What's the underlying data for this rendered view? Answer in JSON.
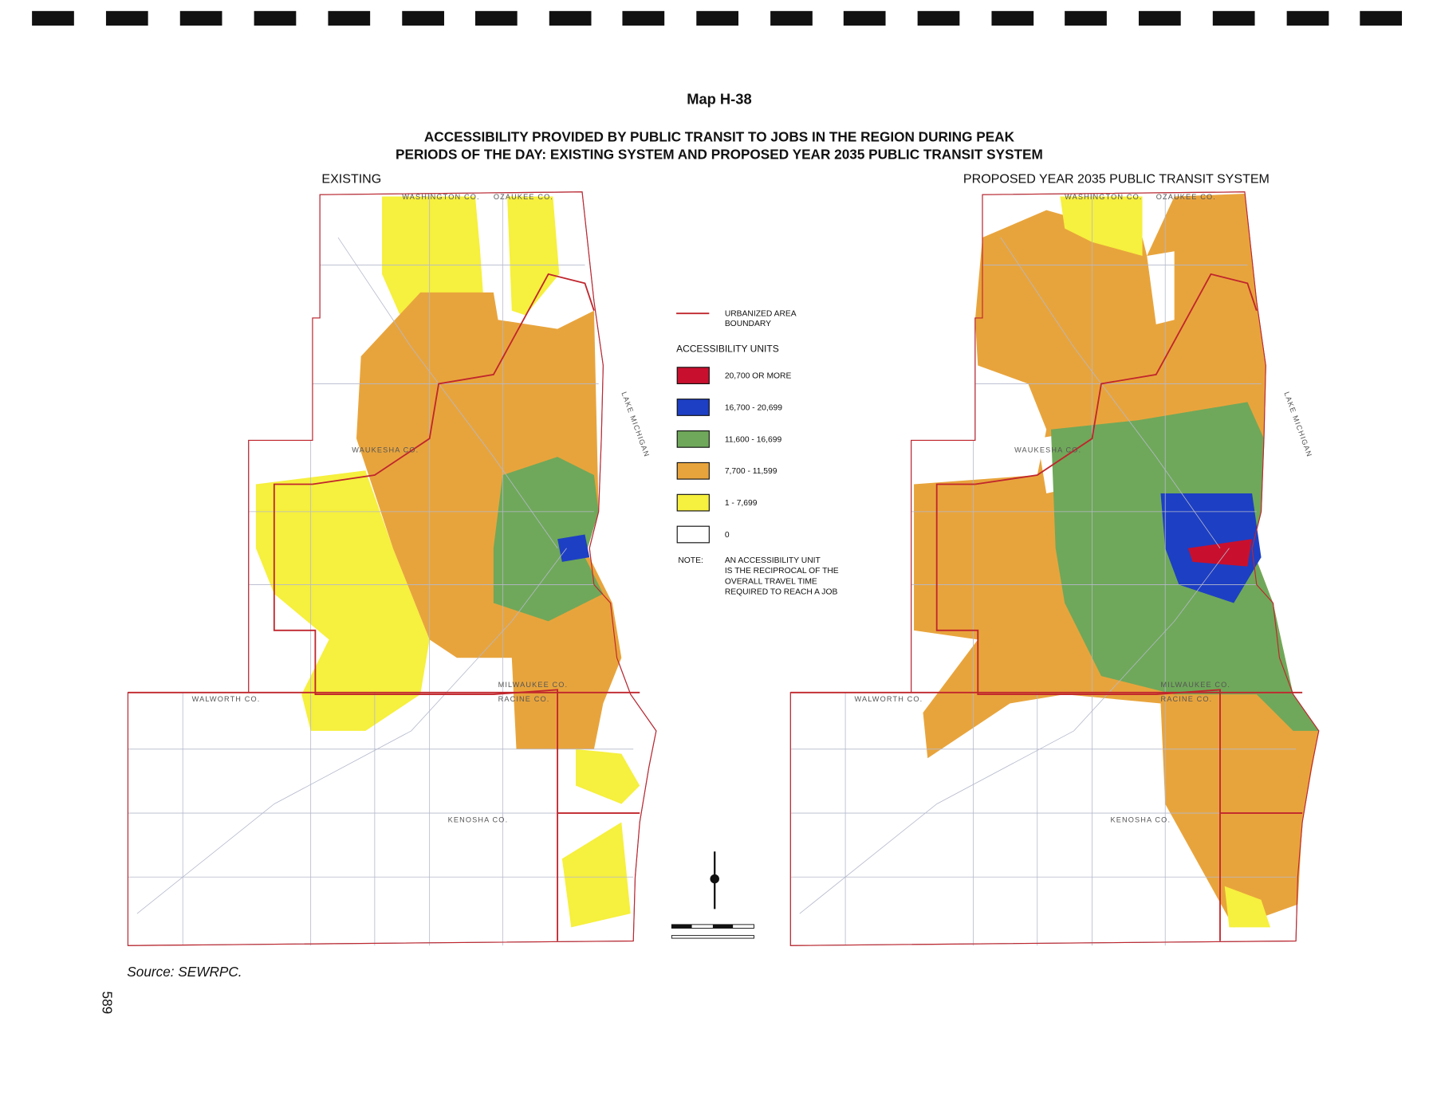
{
  "header": {
    "map_number": "Map H-38",
    "title_lines": [
      "ACCESSIBILITY PROVIDED BY PUBLIC TRANSIT TO JOBS IN THE REGION DURING PEAK",
      "PERIODS OF THE DAY:  EXISTING SYSTEM AND PROPOSED YEAR 2035 PUBLIC TRANSIT SYSTEM"
    ]
  },
  "maps": [
    {
      "label": "EXISTING"
    },
    {
      "label": "PROPOSED YEAR 2035 PUBLIC TRANSIT SYSTEM"
    }
  ],
  "map_labels": {
    "washington": "WASHINGTON CO.",
    "ozaukee": "OZAUKEE CO.",
    "waukesha": "WAUKESHA CO.",
    "milwaukee": "MILWAUKEE CO.",
    "walworth": "WALWORTH CO.",
    "racine": "RACINE CO.",
    "kenosha": "KENOSHA CO.",
    "lake": "LAKE MICHIGAN"
  },
  "legend": {
    "boundary_lines": [
      "URBANIZED AREA",
      "BOUNDARY"
    ],
    "boundary_color": "#c0262d",
    "heading": "ACCESSIBILITY UNITS",
    "items": [
      {
        "label": "20,700 OR MORE",
        "color": "#c8102e"
      },
      {
        "label": "16,700 - 20,699",
        "color": "#1d3fc4"
      },
      {
        "label": "11,600 - 16,699",
        "color": "#6fa85a"
      },
      {
        "label": "7,700 - 11,599",
        "color": "#e8a43c"
      },
      {
        "label": "1 - 7,699",
        "color": "#f6f03e"
      },
      {
        "label": "0",
        "color": "#ffffff"
      }
    ],
    "note_label": "NOTE:",
    "note_lines": [
      "AN ACCESSIBILITY UNIT",
      "IS THE RECIPROCAL OF THE",
      "OVERALL TRAVEL TIME",
      "REQUIRED TO REACH A JOB"
    ]
  },
  "footer": {
    "source": "Source:  SEWRPC.",
    "page_number": "589"
  }
}
